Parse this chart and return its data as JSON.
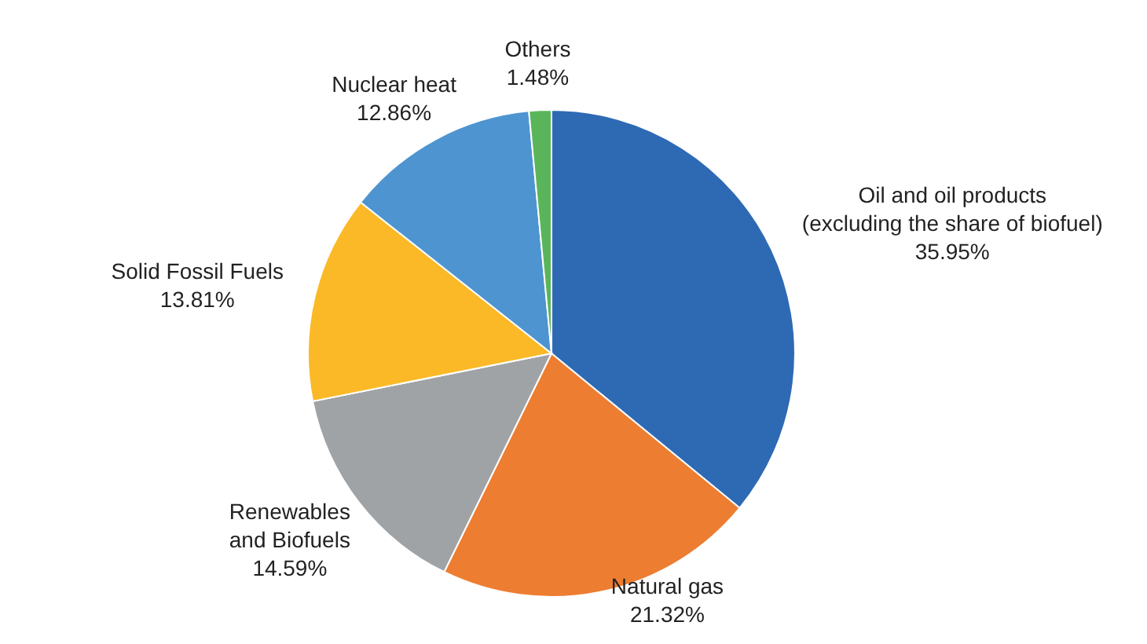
{
  "chart_data": {
    "type": "pie",
    "categories": [
      "Oil and oil products\n(excluding the share of biofuel)",
      "Natural gas",
      "Renewables\nand Biofuels",
      "Solid Fossil Fuels",
      "Nuclear heat",
      "Others"
    ],
    "values": [
      35.95,
      21.32,
      14.59,
      13.81,
      12.86,
      1.48
    ],
    "value_labels": [
      "35.95%",
      "21.32%",
      "14.59%",
      "13.81%",
      "12.86%",
      "1.48%"
    ],
    "colors": [
      "#2e6ab4",
      "#ed7d31",
      "#a0a3a6",
      "#fbb927",
      "#4e94d0",
      "#5ab55a"
    ],
    "legend": false
  }
}
